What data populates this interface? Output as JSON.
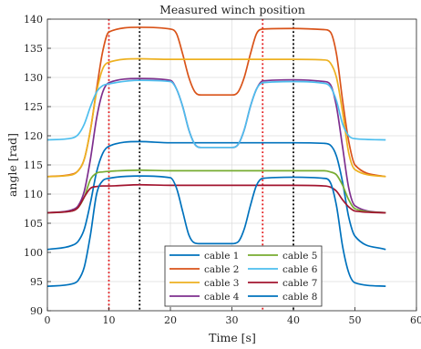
{
  "chart_data": {
    "type": "line",
    "title": "Measured winch position",
    "xlabel": "Time [s]",
    "ylabel": "angle [rad]",
    "xlim": [
      0,
      60
    ],
    "ylim": [
      90,
      140
    ],
    "xticks": [
      0,
      10,
      20,
      30,
      40,
      50,
      60
    ],
    "yticks": [
      90,
      95,
      100,
      105,
      110,
      115,
      120,
      125,
      130,
      135,
      140
    ],
    "grid": true,
    "legend_location": "bottom-center",
    "vlines": [
      {
        "x": 10,
        "color": "#e41a1c",
        "style": "dotted"
      },
      {
        "x": 15,
        "color": "#000000",
        "style": "dotted"
      },
      {
        "x": 35,
        "color": "#e41a1c",
        "style": "dotted"
      },
      {
        "x": 40,
        "color": "#000000",
        "style": "dotted"
      }
    ],
    "series": [
      {
        "name": "cable 1",
        "color": "#0072BD",
        "x": [
          0,
          4,
          5,
          6,
          7,
          8,
          9,
          10,
          15,
          20,
          25,
          30,
          35,
          40,
          45,
          46,
          47,
          48,
          49,
          50,
          55
        ],
        "y": [
          100.5,
          101.2,
          101.9,
          104,
          108.5,
          113.8,
          117,
          118.2,
          119,
          118.8,
          118.8,
          118.8,
          118.8,
          118.8,
          118.7,
          118.4,
          116.5,
          112,
          106,
          102.8,
          100.5
        ]
      },
      {
        "name": "cable 2",
        "color": "#D95319",
        "x": [
          0,
          4,
          5,
          6,
          7,
          8,
          9,
          10,
          15,
          20,
          21,
          22,
          23,
          24,
          25,
          30,
          31,
          32,
          33,
          34,
          35,
          40,
          45,
          46,
          47,
          48,
          49,
          50,
          55
        ],
        "y": [
          113,
          113.4,
          114,
          116,
          121,
          128,
          134.5,
          137.8,
          138.6,
          138.3,
          137.5,
          134,
          130,
          127.5,
          127,
          127,
          127.5,
          130,
          134,
          137.5,
          138.3,
          138.4,
          138.2,
          137.8,
          134,
          126,
          119,
          115,
          113
        ]
      },
      {
        "name": "cable 3",
        "color": "#EDB120",
        "x": [
          0,
          4,
          5,
          6,
          7,
          8,
          9,
          10,
          15,
          20,
          25,
          30,
          35,
          40,
          45,
          46,
          47,
          48,
          49,
          50,
          55
        ],
        "y": [
          113,
          113.3,
          114,
          116,
          121,
          127.5,
          131.5,
          132.6,
          133.2,
          133.1,
          133.1,
          133.1,
          133.1,
          133.1,
          133,
          132.5,
          130,
          124,
          117,
          114.2,
          113
        ]
      },
      {
        "name": "cable 4",
        "color": "#7E2F8E",
        "x": [
          0,
          4,
          5,
          6,
          7,
          8,
          9,
          10,
          15,
          20,
          21,
          22,
          23,
          24,
          25,
          30,
          31,
          32,
          33,
          34,
          35,
          40,
          45,
          46,
          47,
          48,
          49,
          50,
          55
        ],
        "y": [
          106.8,
          107.3,
          108,
          110.5,
          116,
          123,
          127.5,
          129.1,
          129.8,
          129.5,
          128,
          125,
          121,
          118.5,
          118,
          118,
          118.5,
          121,
          125,
          128,
          129.4,
          129.6,
          129.3,
          128.8,
          125,
          118,
          111,
          108,
          106.8
        ]
      },
      {
        "name": "cable 5",
        "color": "#77AC30",
        "x": [
          0,
          4,
          5,
          6,
          7,
          8,
          9,
          10,
          15,
          20,
          25,
          30,
          35,
          40,
          45,
          46,
          47,
          48,
          49,
          50,
          55
        ],
        "y": [
          106.8,
          107.1,
          107.7,
          109.5,
          112.5,
          113.6,
          113.8,
          113.9,
          114.1,
          114,
          114,
          114,
          114,
          114,
          114,
          113.8,
          113.3,
          111.5,
          109,
          107.5,
          106.8
        ]
      },
      {
        "name": "cable 6",
        "color": "#4DBEEE",
        "x": [
          0,
          4,
          5,
          6,
          7,
          8,
          9,
          10,
          15,
          20,
          21,
          22,
          23,
          24,
          25,
          30,
          31,
          32,
          33,
          34,
          35,
          40,
          45,
          46,
          47,
          48,
          49,
          50,
          55
        ],
        "y": [
          119.3,
          119.6,
          120.2,
          122,
          125,
          127.5,
          128.6,
          128.9,
          129.5,
          129.3,
          128,
          125,
          121,
          118.5,
          118,
          118,
          118.5,
          121,
          125,
          128,
          129.1,
          129.3,
          129,
          128.4,
          126,
          122,
          120,
          119.5,
          119.3
        ]
      },
      {
        "name": "cable 7",
        "color": "#A2142F",
        "x": [
          0,
          4,
          5,
          6,
          7,
          8,
          9,
          10,
          15,
          20,
          25,
          30,
          35,
          40,
          45,
          46,
          47,
          48,
          49,
          50,
          55
        ],
        "y": [
          106.8,
          107.1,
          107.7,
          109.5,
          111,
          111.3,
          111.4,
          111.4,
          111.6,
          111.5,
          111.5,
          111.5,
          111.5,
          111.5,
          111.4,
          111.2,
          110.5,
          109,
          107.8,
          107.1,
          106.8
        ]
      },
      {
        "name": "cable 8",
        "color": "#0072BD",
        "x": [
          0,
          4,
          5,
          6,
          7,
          8,
          9,
          10,
          15,
          20,
          21,
          22,
          23,
          24,
          25,
          30,
          31,
          32,
          33,
          34,
          35,
          40,
          45,
          46,
          47,
          48,
          49,
          50,
          55
        ],
        "y": [
          94.2,
          94.6,
          95.2,
          97.5,
          103,
          110,
          112.3,
          112.7,
          113.1,
          112.8,
          111,
          107,
          103,
          101.6,
          101.5,
          101.5,
          101.8,
          104,
          108,
          111.5,
          112.7,
          112.9,
          112.7,
          112,
          108,
          101,
          96.5,
          94.8,
          94.2
        ]
      }
    ]
  }
}
